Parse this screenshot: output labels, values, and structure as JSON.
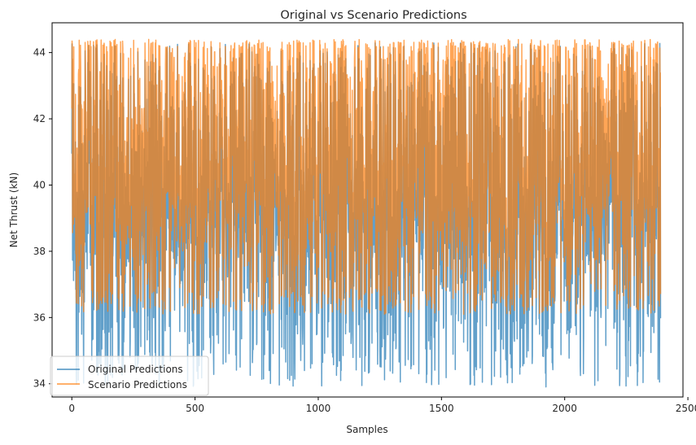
{
  "chart_data": {
    "type": "line",
    "title": "Original vs Scenario Predictions",
    "xlabel": "Samples",
    "ylabel": "Net Thrust (kN)",
    "xlim": [
      -80,
      2480
    ],
    "ylim": [
      33.6,
      44.9
    ],
    "xticks": [
      0,
      500,
      1000,
      1500,
      2000,
      2500
    ],
    "yticks": [
      34,
      36,
      38,
      40,
      42,
      44
    ],
    "n_samples": 2390,
    "grid": false,
    "legend_position": "lower left",
    "series": [
      {
        "name": "Original Predictions",
        "color": "#1f77b4",
        "alpha": 0.7,
        "min": 33.9,
        "max": 44.3,
        "mean": 38.9
      },
      {
        "name": "Scenario Predictions",
        "color": "#ff7f0e",
        "alpha": 0.7,
        "min": 36.1,
        "max": 44.4,
        "mean": 39.8
      }
    ]
  }
}
